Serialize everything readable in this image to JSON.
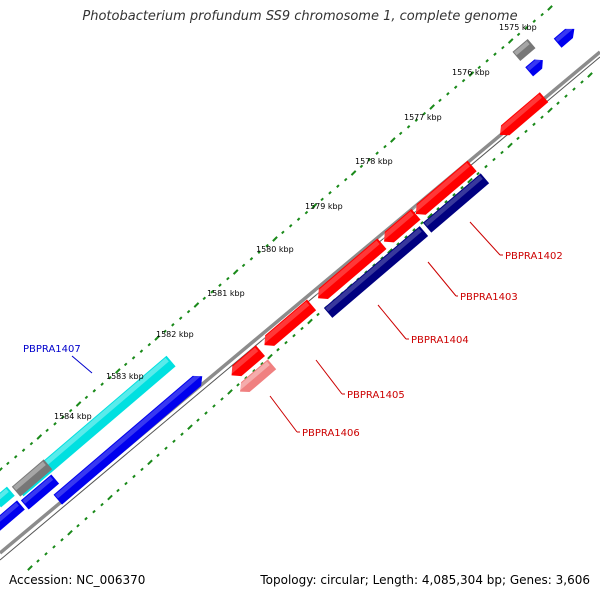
{
  "title": "Photobacterium profundum SS9 chromosome 1, complete genome",
  "footer": {
    "accession": "Accession: NC_006370",
    "summary": "Topology: circular; Length: 4,085,304 bp; Genes: 3,606"
  },
  "colors": {
    "forward_cds": "#0000ee",
    "forward_highlight": "#00e0e0",
    "reverse_cds": "#ff0000",
    "reverse_cds_light": "#f08080",
    "selected_cds": "#000080",
    "other_feature": "#777777",
    "tick": "#1a8a1a",
    "backbone": "#8c8c8c"
  },
  "ticks": [
    {
      "label": "1575 kbp"
    },
    {
      "label": "1576 kbp"
    },
    {
      "label": "1577 kbp"
    },
    {
      "label": "1578 kbp"
    },
    {
      "label": "1579 kbp"
    },
    {
      "label": "1580 kbp"
    },
    {
      "label": "1581 kbp"
    },
    {
      "label": "1582 kbp"
    },
    {
      "label": "1583 kbp"
    },
    {
      "label": "1584 kbp"
    }
  ],
  "gene_labels": [
    {
      "name": "PBPRA1402",
      "color": "#cc0000"
    },
    {
      "name": "PBPRA1403",
      "color": "#cc0000"
    },
    {
      "name": "PBPRA1404",
      "color": "#cc0000"
    },
    {
      "name": "PBPRA1405",
      "color": "#cc0000"
    },
    {
      "name": "PBPRA1406",
      "color": "#cc0000"
    },
    {
      "name": "PBPRA1407",
      "color": "#0000cc"
    }
  ]
}
